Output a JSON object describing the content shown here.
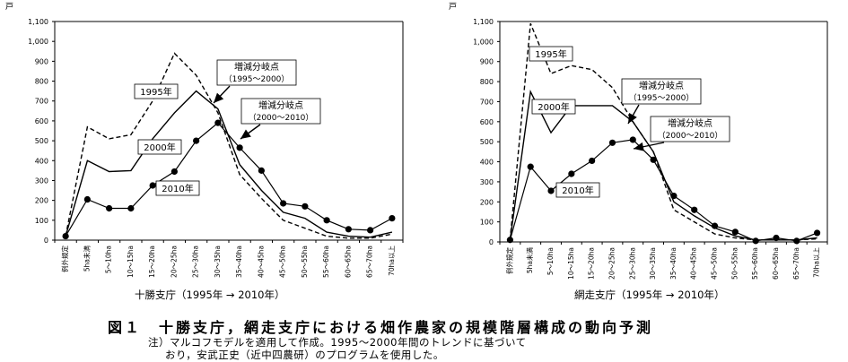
{
  "figure": {
    "title": "図１　十勝支庁，網走支庁における畑作農家の規模階層構成の動向予測",
    "note_line1": "注）マルコフモデルを適用して作成。1995～2000年間のトレンドに基づいて",
    "note_line2": "おり，安武正史（近中四農研）のプログラムを使用した。"
  },
  "chart_data": [
    {
      "type": "line",
      "title": "十勝支庁（1995年 → 2010年）",
      "ylabel": "戸",
      "ylim": [
        0,
        1100
      ],
      "yticks": [
        "0",
        "100",
        "200",
        "300",
        "400",
        "500",
        "600",
        "700",
        "800",
        "900",
        "1,000",
        "1,100"
      ],
      "categories": [
        "例外規定",
        "5ha未満",
        "5～10ha",
        "10～15ha",
        "15～20ha",
        "20～25ha",
        "25～30ha",
        "30～35ha",
        "35～40ha",
        "40～45ha",
        "45～50ha",
        "50～55ha",
        "55～60ha",
        "60～65ha",
        "65～70ha",
        "70ha以上"
      ],
      "grid": false,
      "series": [
        {
          "name": "1995年",
          "style": "dashed",
          "values": [
            20,
            570,
            510,
            530,
            700,
            940,
            830,
            640,
            330,
            210,
            100,
            60,
            20,
            10,
            10,
            30
          ]
        },
        {
          "name": "2000年",
          "style": "solid",
          "values": [
            20,
            400,
            345,
            350,
            510,
            640,
            750,
            660,
            380,
            250,
            140,
            110,
            40,
            20,
            15,
            40
          ]
        },
        {
          "name": "2010年",
          "style": "markers",
          "values": [
            20,
            205,
            160,
            160,
            275,
            345,
            500,
            590,
            465,
            350,
            185,
            170,
            100,
            55,
            50,
            110
          ]
        }
      ],
      "annotations": [
        {
          "text": "増減分岐点",
          "sub": "（1995～2000）"
        },
        {
          "text": "増減分岐点",
          "sub": "（2000～2010）"
        }
      ]
    },
    {
      "type": "line",
      "title": "網走支庁（1995年 → 2010年）",
      "ylabel": "戸",
      "ylim": [
        0,
        1100
      ],
      "yticks": [
        "0",
        "100",
        "200",
        "300",
        "400",
        "500",
        "600",
        "700",
        "800",
        "900",
        "1,000",
        "1,100"
      ],
      "categories": [
        "例外規定",
        "5ha未満",
        "5～10ha",
        "10～15ha",
        "15～20ha",
        "20～25ha",
        "25～30ha",
        "30～35ha",
        "35～40ha",
        "40～45ha",
        "45～50ha",
        "50～55ha",
        "55～60ha",
        "60～65ha",
        "65～70ha",
        "70ha以上"
      ],
      "grid": false,
      "series": [
        {
          "name": "1995年",
          "style": "dashed",
          "values": [
            10,
            1090,
            840,
            880,
            860,
            770,
            600,
            450,
            160,
            100,
            40,
            20,
            10,
            10,
            10,
            15
          ]
        },
        {
          "name": "2000年",
          "style": "solid",
          "values": [
            10,
            750,
            545,
            680,
            680,
            680,
            600,
            450,
            200,
            130,
            70,
            30,
            10,
            10,
            10,
            20
          ]
        },
        {
          "name": "2010年",
          "style": "markers",
          "values": [
            10,
            375,
            255,
            340,
            405,
            495,
            510,
            410,
            230,
            160,
            80,
            50,
            5,
            20,
            5,
            45
          ]
        }
      ],
      "annotations": [
        {
          "text": "増減分岐点",
          "sub": "（1995～2000）"
        },
        {
          "text": "増減分岐点",
          "sub": "（2000～2010）"
        }
      ]
    }
  ]
}
